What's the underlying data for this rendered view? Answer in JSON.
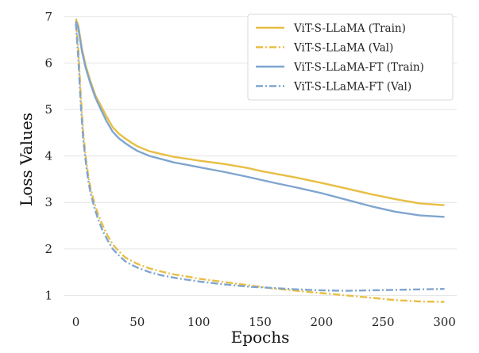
{
  "chart_data": {
    "type": "line",
    "title": "",
    "xlabel": "Epochs",
    "ylabel": "Loss Values",
    "xlim": [
      -10,
      310
    ],
    "ylim": [
      0.7,
      7.15
    ],
    "x_ticks": [
      0,
      50,
      100,
      150,
      200,
      250,
      300
    ],
    "y_ticks": [
      1,
      2,
      3,
      4,
      5,
      6,
      7
    ],
    "grid": "horizontal",
    "legend_position": "top-right",
    "colors": {
      "llama": "#e8be44",
      "llama_ft": "#7fa5cf"
    },
    "series": [
      {
        "name": "ViT-S-LLaMA (Train)",
        "color": "#e8be44",
        "style": "solid",
        "points": [
          [
            0,
            6.95
          ],
          [
            2,
            6.8
          ],
          [
            5,
            6.3
          ],
          [
            8,
            5.95
          ],
          [
            12,
            5.6
          ],
          [
            16,
            5.3
          ],
          [
            20,
            5.1
          ],
          [
            25,
            4.85
          ],
          [
            30,
            4.62
          ],
          [
            35,
            4.48
          ],
          [
            40,
            4.38
          ],
          [
            45,
            4.29
          ],
          [
            50,
            4.21
          ],
          [
            60,
            4.1
          ],
          [
            70,
            4.04
          ],
          [
            80,
            3.98
          ],
          [
            90,
            3.94
          ],
          [
            100,
            3.9
          ],
          [
            120,
            3.83
          ],
          [
            140,
            3.74
          ],
          [
            150,
            3.68
          ],
          [
            160,
            3.63
          ],
          [
            180,
            3.53
          ],
          [
            200,
            3.42
          ],
          [
            220,
            3.3
          ],
          [
            240,
            3.18
          ],
          [
            260,
            3.07
          ],
          [
            280,
            2.98
          ],
          [
            300,
            2.94
          ]
        ]
      },
      {
        "name": "ViT-S-LLaMA (Val)",
        "color": "#e8be44",
        "style": "dashdot",
        "points": [
          [
            0,
            6.9
          ],
          [
            2,
            6.3
          ],
          [
            4,
            5.3
          ],
          [
            6,
            4.5
          ],
          [
            8,
            4.0
          ],
          [
            10,
            3.6
          ],
          [
            12,
            3.3
          ],
          [
            15,
            3.0
          ],
          [
            18,
            2.75
          ],
          [
            22,
            2.5
          ],
          [
            26,
            2.28
          ],
          [
            30,
            2.1
          ],
          [
            35,
            1.95
          ],
          [
            40,
            1.82
          ],
          [
            45,
            1.75
          ],
          [
            50,
            1.68
          ],
          [
            60,
            1.58
          ],
          [
            70,
            1.51
          ],
          [
            80,
            1.45
          ],
          [
            90,
            1.41
          ],
          [
            100,
            1.36
          ],
          [
            120,
            1.29
          ],
          [
            140,
            1.22
          ],
          [
            160,
            1.15
          ],
          [
            180,
            1.1
          ],
          [
            200,
            1.05
          ],
          [
            220,
            1.0
          ],
          [
            240,
            0.95
          ],
          [
            260,
            0.9
          ],
          [
            280,
            0.87
          ],
          [
            300,
            0.86
          ]
        ]
      },
      {
        "name": "ViT-S-LLaMA-FT (Train)",
        "color": "#7fa5cf",
        "style": "solid",
        "points": [
          [
            0,
            6.9
          ],
          [
            2,
            6.75
          ],
          [
            5,
            6.25
          ],
          [
            8,
            5.9
          ],
          [
            12,
            5.55
          ],
          [
            16,
            5.25
          ],
          [
            20,
            5.02
          ],
          [
            25,
            4.75
          ],
          [
            30,
            4.52
          ],
          [
            35,
            4.38
          ],
          [
            40,
            4.28
          ],
          [
            45,
            4.19
          ],
          [
            50,
            4.11
          ],
          [
            60,
            4.0
          ],
          [
            70,
            3.93
          ],
          [
            80,
            3.86
          ],
          [
            90,
            3.81
          ],
          [
            100,
            3.76
          ],
          [
            120,
            3.66
          ],
          [
            140,
            3.55
          ],
          [
            150,
            3.49
          ],
          [
            160,
            3.43
          ],
          [
            180,
            3.32
          ],
          [
            200,
            3.2
          ],
          [
            220,
            3.06
          ],
          [
            240,
            2.92
          ],
          [
            260,
            2.8
          ],
          [
            280,
            2.72
          ],
          [
            300,
            2.69
          ]
        ]
      },
      {
        "name": "ViT-S-LLaMA-FT (Val)",
        "color": "#7fa5cf",
        "style": "dashdot",
        "points": [
          [
            0,
            6.85
          ],
          [
            2,
            6.1
          ],
          [
            4,
            5.1
          ],
          [
            6,
            4.35
          ],
          [
            8,
            3.9
          ],
          [
            10,
            3.5
          ],
          [
            12,
            3.2
          ],
          [
            15,
            2.9
          ],
          [
            18,
            2.65
          ],
          [
            22,
            2.38
          ],
          [
            26,
            2.18
          ],
          [
            30,
            2.0
          ],
          [
            35,
            1.86
          ],
          [
            40,
            1.74
          ],
          [
            45,
            1.66
          ],
          [
            50,
            1.6
          ],
          [
            60,
            1.5
          ],
          [
            70,
            1.43
          ],
          [
            80,
            1.38
          ],
          [
            90,
            1.34
          ],
          [
            100,
            1.3
          ],
          [
            120,
            1.24
          ],
          [
            140,
            1.19
          ],
          [
            160,
            1.16
          ],
          [
            180,
            1.13
          ],
          [
            200,
            1.11
          ],
          [
            220,
            1.1
          ],
          [
            240,
            1.11
          ],
          [
            260,
            1.12
          ],
          [
            280,
            1.13
          ],
          [
            300,
            1.14
          ]
        ]
      }
    ]
  }
}
